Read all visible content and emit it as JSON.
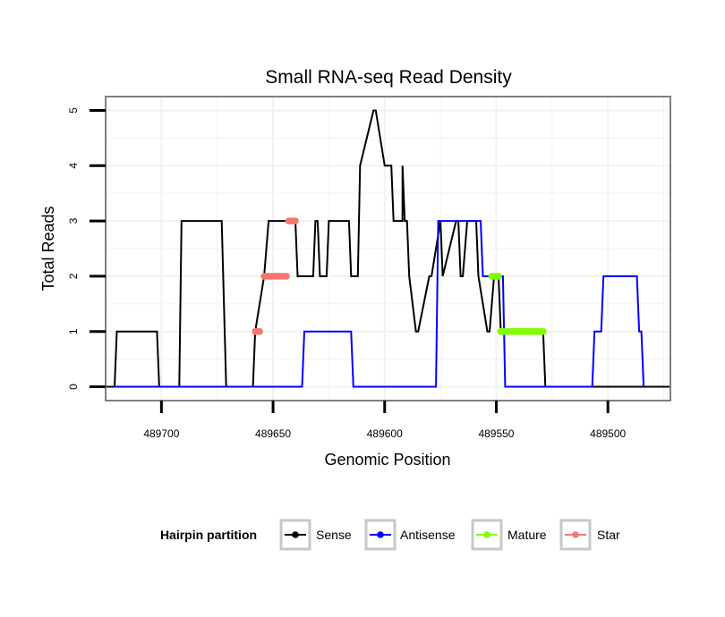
{
  "chart_data": {
    "type": "line",
    "title": "Small RNA-seq Read Density",
    "xlabel": "Genomic Position",
    "ylabel": "Total Reads",
    "xlim": [
      489725,
      489472
    ],
    "x_reversed": true,
    "ylim": [
      -0.25,
      5.25
    ],
    "x_ticks": [
      489700,
      489650,
      489600,
      489550,
      489500
    ],
    "x_tick_labels": [
      "489700",
      "489650",
      "489600",
      "489550",
      "489500"
    ],
    "y_ticks": [
      0,
      1,
      2,
      3,
      4,
      5
    ],
    "y_tick_labels": [
      "0",
      "1",
      "2",
      "3",
      "4",
      "5"
    ],
    "grid": true,
    "legend": {
      "title": "Hairpin partition",
      "position": "bottom"
    },
    "series": [
      {
        "name": "Sense",
        "color": "#000000",
        "x": [
          489725,
          489721,
          489720,
          489702,
          489701,
          489692,
          489691,
          489673,
          489671,
          489659,
          489658,
          489654,
          489652,
          489640,
          489639,
          489632,
          489631,
          489630,
          489629,
          489626,
          489625,
          489616,
          489615,
          489612,
          489611,
          489605,
          489604,
          489600,
          489597,
          489596,
          489593,
          489592,
          489592,
          489591,
          489590,
          489589,
          489586,
          489585,
          489580,
          489579,
          489575,
          489574,
          489568,
          489567,
          489566,
          489565,
          489563,
          489559,
          489558,
          489554,
          489553,
          489551,
          489550,
          489549,
          489548,
          489529,
          489528,
          489472
        ],
        "y": [
          0,
          0,
          1,
          1,
          0,
          0,
          3,
          3,
          0,
          0,
          1,
          2,
          3,
          3,
          2,
          2,
          3,
          3,
          2,
          2,
          3,
          3,
          2,
          2,
          4,
          5,
          5,
          4,
          4,
          3,
          3,
          3,
          4,
          3,
          3,
          2,
          1,
          1,
          2,
          2,
          3,
          2,
          3,
          3,
          2,
          2,
          3,
          3,
          2,
          1,
          1,
          2,
          2,
          2,
          1,
          1,
          0,
          0
        ]
      },
      {
        "name": "Antisense",
        "color": "#0000ff",
        "x": [
          489721,
          489637,
          489636,
          489615,
          489614,
          489577,
          489576,
          489557,
          489556,
          489547,
          489546,
          489507,
          489506,
          489503,
          489502,
          489487,
          489486,
          489485,
          489484
        ],
        "y": [
          0,
          0,
          1,
          1,
          0,
          0,
          3,
          3,
          2,
          2,
          0,
          0,
          1,
          1,
          2,
          2,
          1,
          1,
          0
        ]
      },
      {
        "name": "Mature",
        "color": "#7fff00",
        "x": [
          489552,
          489551,
          489550,
          489549,
          489548,
          489547,
          489546,
          489545,
          489544,
          489543,
          489542,
          489541,
          489540,
          489539,
          489538,
          489537,
          489536,
          489535,
          489534,
          489533,
          489532,
          489531,
          489530,
          489529
        ],
        "y": [
          2,
          2,
          2,
          2,
          1,
          1,
          1,
          1,
          1,
          1,
          1,
          1,
          1,
          1,
          1,
          1,
          1,
          1,
          1,
          1,
          1,
          1,
          1,
          1
        ]
      },
      {
        "name": "Star",
        "color": "#f8766d",
        "x": [
          489658,
          489657,
          489656,
          489654,
          489653,
          489652,
          489651,
          489650,
          489649,
          489648,
          489647,
          489646,
          489645,
          489644,
          489643,
          489642,
          489641,
          489640
        ],
        "y": [
          1,
          1,
          1,
          2,
          2,
          2,
          2,
          2,
          2,
          2,
          2,
          2,
          2,
          2,
          3,
          3,
          3,
          3
        ]
      }
    ]
  }
}
